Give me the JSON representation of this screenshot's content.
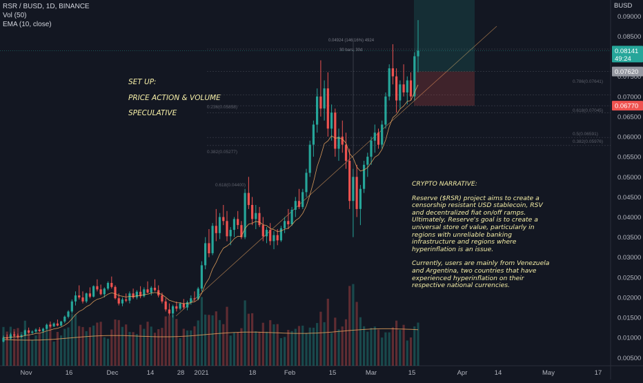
{
  "header": {
    "symbol": "RSR / BUSD, 1D, BINANCE",
    "vol_indicator": "Vol (50)",
    "ema_indicator": "EMA (10, close)"
  },
  "setup": {
    "line1": "SET UP:",
    "line2": "PRICE ACTION & VOLUME",
    "line3": "SPECULATIVE"
  },
  "narrative": {
    "title": "CRYPTO NARRATIVE:",
    "p1": "Reserve ($RSR) project aims to create a censorship resistant USD stablecoin, RSV and decentralized fiat on/off ramps. Ultimately, Reserve's goal is to create a universal store of value, particularly in regions with unreliable banking infrastructure and regions where hyperinflation is an issue.",
    "p2": "Currently, users are mainly from Venezuela and Argentina, two countries that have experienced hyperinflation on their respective national currencies."
  },
  "price_axis": {
    "currency": "BUSD",
    "ticks": [
      "0.09000",
      "0.08500",
      "0.08000",
      "0.07500",
      "0.07000",
      "0.06500",
      "0.06000",
      "0.05500",
      "0.05000",
      "0.04500",
      "0.04000",
      "0.03500",
      "0.03000",
      "0.02500",
      "0.02000",
      "0.01500",
      "0.01000",
      "0.00500"
    ],
    "current_price": "0.08141",
    "countdown": "49:24",
    "target_price": "0.07620",
    "stop_price": "0.06770"
  },
  "time_axis": {
    "ticks": [
      "Nov",
      "16",
      "Dec",
      "14",
      "28",
      "2021",
      "18",
      "Feb",
      "15",
      "Mar",
      "15",
      "Apr",
      "14",
      "May",
      "17"
    ]
  },
  "measure": {
    "line1": "0.04924 (146.16%) 4924",
    "line2": "30 bars, 30d"
  },
  "fib_labels": [
    "0.236(0.05858)",
    "0.382(0.05277)",
    "0.618(0.04400)",
    "0.786(0.07641)",
    "0.618(0.07045)",
    "0.5(0.06591)",
    "0.382(0.05976)"
  ],
  "colors": {
    "background": "#131722",
    "up": "#26a69a",
    "down": "#ef5350",
    "ema": "#f0a860",
    "annotation": "#f7f0a8",
    "current_label": "#26a69a",
    "stop_label": "#ef5350"
  },
  "chart_data": {
    "type": "candlestick",
    "y_range": [
      0.003,
      0.094
    ],
    "ohlc": [
      [
        0.009,
        0.0105,
        0.0088,
        0.01
      ],
      [
        0.01,
        0.0108,
        0.0095,
        0.0098
      ],
      [
        0.0098,
        0.0112,
        0.0096,
        0.0108
      ],
      [
        0.0108,
        0.0115,
        0.0102,
        0.0105
      ],
      [
        0.0105,
        0.011,
        0.0098,
        0.0102
      ],
      [
        0.0102,
        0.0108,
        0.0099,
        0.0106
      ],
      [
        0.0106,
        0.012,
        0.0104,
        0.0118
      ],
      [
        0.0118,
        0.0125,
        0.011,
        0.0112
      ],
      [
        0.0112,
        0.0118,
        0.0108,
        0.0115
      ],
      [
        0.0115,
        0.0123,
        0.0111,
        0.012
      ],
      [
        0.012,
        0.0126,
        0.0114,
        0.0116
      ],
      [
        0.0116,
        0.0125,
        0.0113,
        0.0122
      ],
      [
        0.0122,
        0.0135,
        0.012,
        0.0132
      ],
      [
        0.0132,
        0.014,
        0.0125,
        0.0128
      ],
      [
        0.0128,
        0.0138,
        0.0126,
        0.0135
      ],
      [
        0.0135,
        0.0145,
        0.0128,
        0.013
      ],
      [
        0.013,
        0.0142,
        0.0128,
        0.014
      ],
      [
        0.014,
        0.0155,
        0.0136,
        0.0152
      ],
      [
        0.0152,
        0.0168,
        0.0148,
        0.0165
      ],
      [
        0.0165,
        0.0195,
        0.016,
        0.019
      ],
      [
        0.019,
        0.0215,
        0.018,
        0.0205
      ],
      [
        0.0205,
        0.023,
        0.0195,
        0.02
      ],
      [
        0.02,
        0.0215,
        0.0185,
        0.019
      ],
      [
        0.019,
        0.0212,
        0.0186,
        0.021
      ],
      [
        0.021,
        0.0225,
        0.0198,
        0.0202
      ],
      [
        0.0202,
        0.023,
        0.02,
        0.0228
      ],
      [
        0.0228,
        0.0245,
        0.0215,
        0.022
      ],
      [
        0.022,
        0.0232,
        0.0205,
        0.0208
      ],
      [
        0.0208,
        0.0225,
        0.02,
        0.0222
      ],
      [
        0.0222,
        0.024,
        0.0218,
        0.0236
      ],
      [
        0.0236,
        0.0252,
        0.0222,
        0.0226
      ],
      [
        0.0226,
        0.023,
        0.0195,
        0.0198
      ],
      [
        0.0198,
        0.021,
        0.018,
        0.0185
      ],
      [
        0.0185,
        0.02,
        0.0178,
        0.0195
      ],
      [
        0.0195,
        0.021,
        0.0188,
        0.0192
      ],
      [
        0.0192,
        0.0215,
        0.0185,
        0.021
      ],
      [
        0.021,
        0.0222,
        0.0196,
        0.02
      ],
      [
        0.02,
        0.0218,
        0.0195,
        0.0214
      ],
      [
        0.0214,
        0.0228,
        0.0198,
        0.0203
      ],
      [
        0.0203,
        0.0225,
        0.02,
        0.022
      ],
      [
        0.022,
        0.024,
        0.021,
        0.0212
      ],
      [
        0.0212,
        0.0228,
        0.0205,
        0.0224
      ],
      [
        0.0224,
        0.0245,
        0.0215,
        0.0218
      ],
      [
        0.0218,
        0.023,
        0.02,
        0.0205
      ],
      [
        0.0205,
        0.0212,
        0.0185,
        0.019
      ],
      [
        0.019,
        0.0198,
        0.0165,
        0.017
      ],
      [
        0.017,
        0.0185,
        0.0155,
        0.016
      ],
      [
        0.016,
        0.0182,
        0.015,
        0.0178
      ],
      [
        0.0178,
        0.019,
        0.0165,
        0.0172
      ],
      [
        0.0172,
        0.0188,
        0.0168,
        0.0185
      ],
      [
        0.0185,
        0.0196,
        0.017,
        0.0175
      ],
      [
        0.0175,
        0.0192,
        0.0168,
        0.0188
      ],
      [
        0.0188,
        0.0205,
        0.0182,
        0.0198
      ],
      [
        0.0198,
        0.0215,
        0.019,
        0.0196
      ],
      [
        0.0196,
        0.0226,
        0.0193,
        0.0222
      ],
      [
        0.0222,
        0.029,
        0.0215,
        0.028
      ],
      [
        0.028,
        0.035,
        0.027,
        0.0335
      ],
      [
        0.0335,
        0.037,
        0.03,
        0.031
      ],
      [
        0.031,
        0.0385,
        0.0305,
        0.0378
      ],
      [
        0.0378,
        0.042,
        0.034,
        0.036
      ],
      [
        0.036,
        0.041,
        0.0345,
        0.04
      ],
      [
        0.04,
        0.043,
        0.038,
        0.039
      ],
      [
        0.039,
        0.0415,
        0.034,
        0.0352
      ],
      [
        0.0352,
        0.0375,
        0.033,
        0.0368
      ],
      [
        0.0368,
        0.04,
        0.035,
        0.0395
      ],
      [
        0.0395,
        0.0415,
        0.037,
        0.038
      ],
      [
        0.038,
        0.039,
        0.0345,
        0.035
      ],
      [
        0.035,
        0.047,
        0.0345,
        0.046
      ],
      [
        0.046,
        0.05,
        0.042,
        0.043
      ],
      [
        0.043,
        0.045,
        0.038,
        0.0395
      ],
      [
        0.0395,
        0.043,
        0.037,
        0.041
      ],
      [
        0.041,
        0.0425,
        0.0375,
        0.038
      ],
      [
        0.038,
        0.04,
        0.034,
        0.0352
      ],
      [
        0.0352,
        0.0375,
        0.0335,
        0.0368
      ],
      [
        0.0368,
        0.0385,
        0.033,
        0.034
      ],
      [
        0.034,
        0.0365,
        0.032,
        0.0355
      ],
      [
        0.0355,
        0.037,
        0.033,
        0.0342
      ],
      [
        0.0342,
        0.0378,
        0.0338,
        0.0372
      ],
      [
        0.0372,
        0.04,
        0.036,
        0.039
      ],
      [
        0.039,
        0.042,
        0.037,
        0.0382
      ],
      [
        0.0382,
        0.0425,
        0.0378,
        0.0418
      ],
      [
        0.0418,
        0.045,
        0.04,
        0.044
      ],
      [
        0.044,
        0.047,
        0.042,
        0.0425
      ],
      [
        0.0425,
        0.047,
        0.042,
        0.0462
      ],
      [
        0.0462,
        0.052,
        0.045,
        0.051
      ],
      [
        0.051,
        0.059,
        0.05,
        0.058
      ],
      [
        0.058,
        0.064,
        0.055,
        0.063
      ],
      [
        0.063,
        0.072,
        0.061,
        0.07
      ],
      [
        0.07,
        0.079,
        0.065,
        0.067
      ],
      [
        0.067,
        0.074,
        0.064,
        0.072
      ],
      [
        0.072,
        0.076,
        0.06,
        0.062
      ],
      [
        0.062,
        0.068,
        0.059,
        0.066
      ],
      [
        0.066,
        0.067,
        0.055,
        0.057
      ],
      [
        0.057,
        0.062,
        0.054,
        0.06
      ],
      [
        0.06,
        0.064,
        0.056,
        0.058
      ],
      [
        0.058,
        0.061,
        0.052,
        0.054
      ],
      [
        0.054,
        0.057,
        0.042,
        0.044
      ],
      [
        0.044,
        0.052,
        0.035,
        0.05
      ],
      [
        0.05,
        0.053,
        0.04,
        0.042
      ],
      [
        0.042,
        0.048,
        0.038,
        0.047
      ],
      [
        0.047,
        0.054,
        0.046,
        0.053
      ],
      [
        0.053,
        0.056,
        0.05,
        0.055
      ],
      [
        0.055,
        0.06,
        0.053,
        0.059
      ],
      [
        0.059,
        0.063,
        0.056,
        0.061
      ],
      [
        0.061,
        0.062,
        0.057,
        0.058
      ],
      [
        0.058,
        0.064,
        0.057,
        0.063
      ],
      [
        0.063,
        0.071,
        0.062,
        0.07
      ],
      [
        0.07,
        0.078,
        0.069,
        0.077
      ],
      [
        0.077,
        0.083,
        0.073,
        0.075
      ],
      [
        0.075,
        0.077,
        0.066,
        0.069
      ],
      [
        0.069,
        0.074,
        0.067,
        0.073
      ],
      [
        0.073,
        0.078,
        0.07,
        0.071
      ],
      [
        0.071,
        0.075,
        0.068,
        0.074
      ],
      [
        0.074,
        0.076,
        0.069,
        0.07
      ],
      [
        0.07,
        0.081,
        0.069,
        0.08
      ],
      [
        0.08,
        0.089,
        0.076,
        0.0814
      ]
    ],
    "volume_scale": [
      0,
      0.02
    ]
  }
}
